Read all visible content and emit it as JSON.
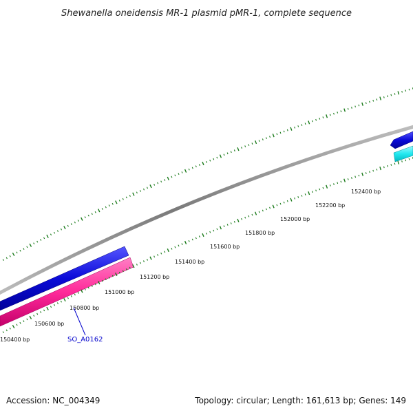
{
  "title": "Shewanella oneidensis MR-1 plasmid pMR-1, complete sequence",
  "footer": {
    "accession": "Accession: NC_004349",
    "summary": "Topology: circular; Length: 161,613 bp; Genes: 149"
  },
  "scale_labels": [
    "150400 bp",
    "150600 bp",
    "150800 bp",
    "151000 bp",
    "151200 bp",
    "151400 bp",
    "151600 bp",
    "151800 bp",
    "152000 bp",
    "152200 bp",
    "152400 bp"
  ],
  "gene_labels": [
    {
      "text": "SO_A0162"
    }
  ],
  "colors": {
    "backbone": "#8a8a8a",
    "forward_feature": "#1010e0",
    "reverse_feature": "#ff2a9a",
    "cyan_feature": "#22e8f0",
    "ticks": "#1a7a1a",
    "gene_label": "#0000cc"
  }
}
